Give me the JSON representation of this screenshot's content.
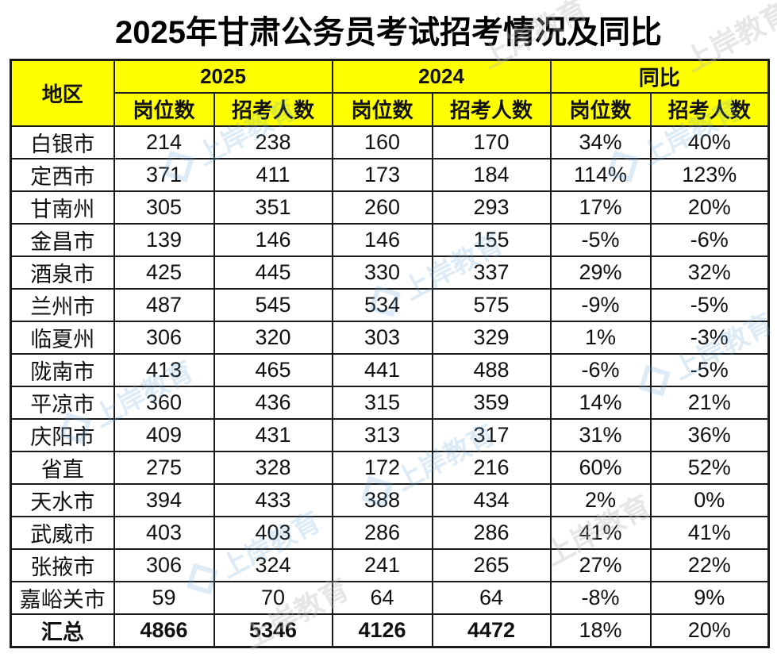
{
  "title": "2025年甘肃公务员考试招考情况及同比",
  "colors": {
    "header_bg": "#ffff00",
    "border": "#1a1a1a",
    "text": "#111111",
    "watermark_blue": "#63a9d6",
    "watermark_gray": "#b9b9b9"
  },
  "watermark": {
    "text": "上岸教育"
  },
  "chart_data": {
    "type": "table",
    "title": "2025年甘肃公务员考试招考情况及同比",
    "region_column": "地区",
    "column_groups": [
      "2025",
      "2024",
      "同比"
    ],
    "sub_columns": [
      "岗位数",
      "招考人数"
    ],
    "columns": [
      "地区",
      "2025 岗位数",
      "2025 招考人数",
      "2024 岗位数",
      "2024 招考人数",
      "同比 岗位数",
      "同比 招考人数"
    ],
    "rows": [
      {
        "region": "白银市",
        "values": [
          "214",
          "238",
          "160",
          "170",
          "34%",
          "40%"
        ]
      },
      {
        "region": "定西市",
        "values": [
          "371",
          "411",
          "173",
          "184",
          "114%",
          "123%"
        ]
      },
      {
        "region": "甘南州",
        "values": [
          "305",
          "351",
          "260",
          "293",
          "17%",
          "20%"
        ]
      },
      {
        "region": "金昌市",
        "values": [
          "139",
          "146",
          "146",
          "155",
          "-5%",
          "-6%"
        ]
      },
      {
        "region": "酒泉市",
        "values": [
          "425",
          "445",
          "330",
          "337",
          "29%",
          "32%"
        ]
      },
      {
        "region": "兰州市",
        "values": [
          "487",
          "545",
          "534",
          "575",
          "-9%",
          "-5%"
        ]
      },
      {
        "region": "临夏州",
        "values": [
          "306",
          "320",
          "303",
          "329",
          "1%",
          "-3%"
        ]
      },
      {
        "region": "陇南市",
        "values": [
          "413",
          "465",
          "441",
          "488",
          "-6%",
          "-5%"
        ]
      },
      {
        "region": "平凉市",
        "values": [
          "360",
          "436",
          "315",
          "359",
          "14%",
          "21%"
        ]
      },
      {
        "region": "庆阳市",
        "values": [
          "409",
          "431",
          "313",
          "317",
          "31%",
          "36%"
        ]
      },
      {
        "region": "省直",
        "values": [
          "275",
          "328",
          "172",
          "216",
          "60%",
          "52%"
        ]
      },
      {
        "region": "天水市",
        "values": [
          "394",
          "433",
          "388",
          "434",
          "2%",
          "0%"
        ]
      },
      {
        "region": "武威市",
        "values": [
          "403",
          "403",
          "286",
          "286",
          "41%",
          "41%"
        ]
      },
      {
        "region": "张掖市",
        "values": [
          "306",
          "324",
          "241",
          "265",
          "27%",
          "22%"
        ]
      },
      {
        "region": "嘉峪关市",
        "values": [
          "59",
          "70",
          "64",
          "64",
          "-8%",
          "9%"
        ]
      }
    ],
    "total_row": {
      "region": "汇总",
      "values": [
        "4866",
        "5346",
        "4126",
        "4472",
        "18%",
        "20%"
      ],
      "total": true
    }
  }
}
